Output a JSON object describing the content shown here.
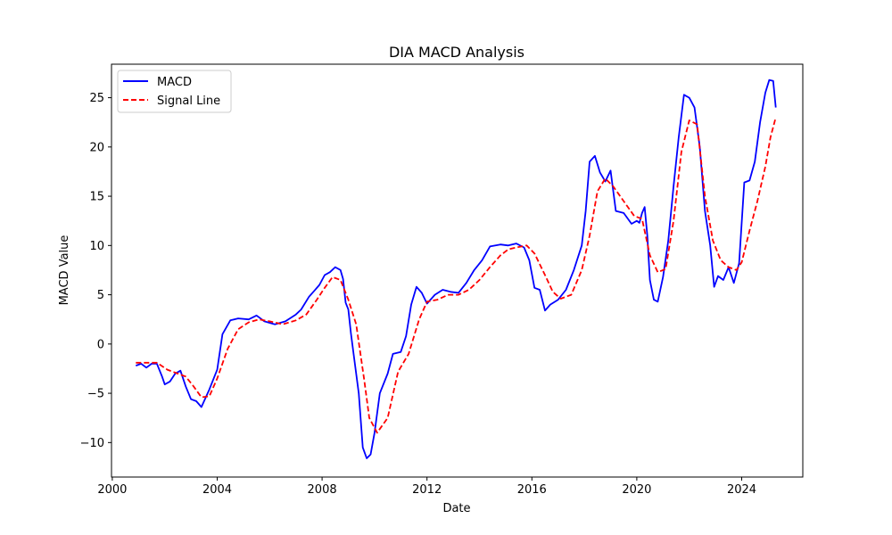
{
  "chart_data": {
    "type": "line",
    "title": "DIA MACD Analysis",
    "xlabel": "Date",
    "ylabel": "MACD Value",
    "xlim": [
      1999.97,
      2026.33
    ],
    "ylim": [
      -13.5,
      28.4
    ],
    "x_ticks": [
      2000,
      2004,
      2008,
      2012,
      2016,
      2020,
      2024
    ],
    "x_tick_labels": [
      "2000",
      "2004",
      "2008",
      "2012",
      "2016",
      "2020",
      "2024"
    ],
    "y_ticks": [
      -10,
      -5,
      0,
      5,
      10,
      15,
      20,
      25
    ],
    "y_tick_labels": [
      "−10",
      "−5",
      "0",
      "5",
      "10",
      "15",
      "20",
      "25"
    ],
    "grid": false,
    "legend_position": "top-left",
    "series": [
      {
        "name": "MACD",
        "color": "#0000ff",
        "dash": "solid",
        "x": [
          2000.9,
          2001.1,
          2001.3,
          2001.5,
          2001.7,
          2001.9,
          2002.0,
          2002.2,
          2002.4,
          2002.6,
          2002.8,
          2003.0,
          2003.2,
          2003.4,
          2003.7,
          2004.0,
          2004.2,
          2004.5,
          2004.8,
          2005.2,
          2005.5,
          2005.8,
          2006.2,
          2006.6,
          2007.0,
          2007.2,
          2007.5,
          2007.7,
          2007.9,
          2008.1,
          2008.3,
          2008.5,
          2008.7,
          2008.8,
          2008.9,
          2009.0,
          2009.1,
          2009.2,
          2009.4,
          2009.55,
          2009.7,
          2009.85,
          2010.0,
          2010.2,
          2010.5,
          2010.7,
          2011.0,
          2011.2,
          2011.4,
          2011.6,
          2011.8,
          2012.0,
          2012.3,
          2012.6,
          2012.9,
          2013.2,
          2013.5,
          2013.8,
          2014.1,
          2014.4,
          2014.8,
          2015.1,
          2015.4,
          2015.7,
          2015.9,
          2016.1,
          2016.3,
          2016.5,
          2016.7,
          2017.0,
          2017.3,
          2017.6,
          2017.9,
          2018.05,
          2018.2,
          2018.4,
          2018.6,
          2018.8,
          2019.0,
          2019.2,
          2019.5,
          2019.8,
          2020.0,
          2020.1,
          2020.2,
          2020.3,
          2020.4,
          2020.5,
          2020.65,
          2020.8,
          2021.0,
          2021.2,
          2021.4,
          2021.6,
          2021.8,
          2022.0,
          2022.2,
          2022.4,
          2022.6,
          2022.8,
          2022.95,
          2023.1,
          2023.3,
          2023.5,
          2023.7,
          2023.9,
          2024.1,
          2024.3,
          2024.5,
          2024.7,
          2024.9,
          2025.05,
          2025.2,
          2025.3
        ],
        "values": [
          -2.2,
          -2.0,
          -2.4,
          -2.0,
          -2.0,
          -3.3,
          -4.1,
          -3.8,
          -3.0,
          -2.7,
          -4.3,
          -5.6,
          -5.8,
          -6.4,
          -4.6,
          -2.6,
          1.0,
          2.4,
          2.6,
          2.5,
          2.9,
          2.3,
          2.0,
          2.3,
          3.0,
          3.5,
          4.8,
          5.4,
          6.0,
          7.0,
          7.3,
          7.8,
          7.5,
          6.6,
          4.2,
          3.5,
          1.1,
          -1.0,
          -5.0,
          -10.5,
          -11.6,
          -11.2,
          -9.0,
          -5.0,
          -3.0,
          -1.0,
          -0.8,
          0.8,
          4.0,
          5.8,
          5.2,
          4.1,
          5.0,
          5.5,
          5.3,
          5.2,
          6.2,
          7.5,
          8.5,
          9.9,
          10.1,
          10.0,
          10.2,
          9.8,
          8.5,
          5.7,
          5.5,
          3.4,
          4.0,
          4.5,
          5.5,
          7.5,
          10.0,
          13.5,
          18.5,
          19.1,
          17.4,
          16.5,
          17.6,
          13.5,
          13.3,
          12.2,
          12.5,
          12.3,
          13.3,
          13.9,
          11.0,
          6.5,
          4.5,
          4.3,
          6.8,
          10.5,
          16.0,
          21.0,
          25.3,
          25.0,
          24.0,
          20.0,
          13.5,
          10.0,
          5.8,
          6.9,
          6.5,
          7.8,
          6.2,
          8.2,
          16.4,
          16.6,
          18.5,
          22.5,
          25.5,
          26.8,
          26.7,
          24.0
        ]
      },
      {
        "name": "Signal Line",
        "color": "#ff0000",
        "dash": "dashed",
        "x": [
          2000.9,
          2001.3,
          2001.7,
          2002.1,
          2002.5,
          2002.8,
          2003.1,
          2003.4,
          2003.7,
          2004.0,
          2004.4,
          2004.8,
          2005.2,
          2005.6,
          2006.0,
          2006.5,
          2007.0,
          2007.4,
          2007.8,
          2008.1,
          2008.4,
          2008.7,
          2009.0,
          2009.3,
          2009.6,
          2009.8,
          2010.1,
          2010.5,
          2010.9,
          2011.3,
          2011.7,
          2012.0,
          2012.4,
          2012.8,
          2013.2,
          2013.6,
          2014.0,
          2014.4,
          2014.8,
          2015.1,
          2015.4,
          2015.8,
          2016.1,
          2016.5,
          2016.8,
          2017.1,
          2017.5,
          2017.9,
          2018.2,
          2018.5,
          2018.8,
          2019.1,
          2019.5,
          2019.9,
          2020.2,
          2020.5,
          2020.8,
          2021.1,
          2021.4,
          2021.7,
          2022.0,
          2022.3,
          2022.6,
          2022.9,
          2023.2,
          2023.5,
          2023.8,
          2024.0,
          2024.3,
          2024.6,
          2024.9,
          2025.1,
          2025.3
        ],
        "values": [
          -1.9,
          -1.9,
          -1.9,
          -2.6,
          -3.0,
          -3.3,
          -4.3,
          -5.4,
          -5.3,
          -3.5,
          -0.5,
          1.5,
          2.2,
          2.5,
          2.3,
          2.0,
          2.4,
          3.0,
          4.5,
          5.7,
          6.8,
          6.5,
          4.5,
          2.0,
          -3.5,
          -7.5,
          -9.0,
          -7.5,
          -2.8,
          -1.0,
          2.5,
          4.3,
          4.5,
          5.0,
          5.0,
          5.5,
          6.5,
          7.8,
          9.0,
          9.6,
          9.8,
          10.0,
          9.2,
          7.0,
          5.3,
          4.6,
          5.0,
          7.5,
          11.0,
          15.5,
          16.8,
          16.0,
          14.5,
          13.0,
          12.7,
          9.0,
          7.3,
          7.6,
          12.5,
          19.5,
          22.7,
          22.3,
          15.0,
          10.5,
          8.5,
          7.8,
          7.5,
          8.3,
          11.5,
          14.5,
          18.0,
          21.0,
          23.0
        ]
      }
    ]
  }
}
